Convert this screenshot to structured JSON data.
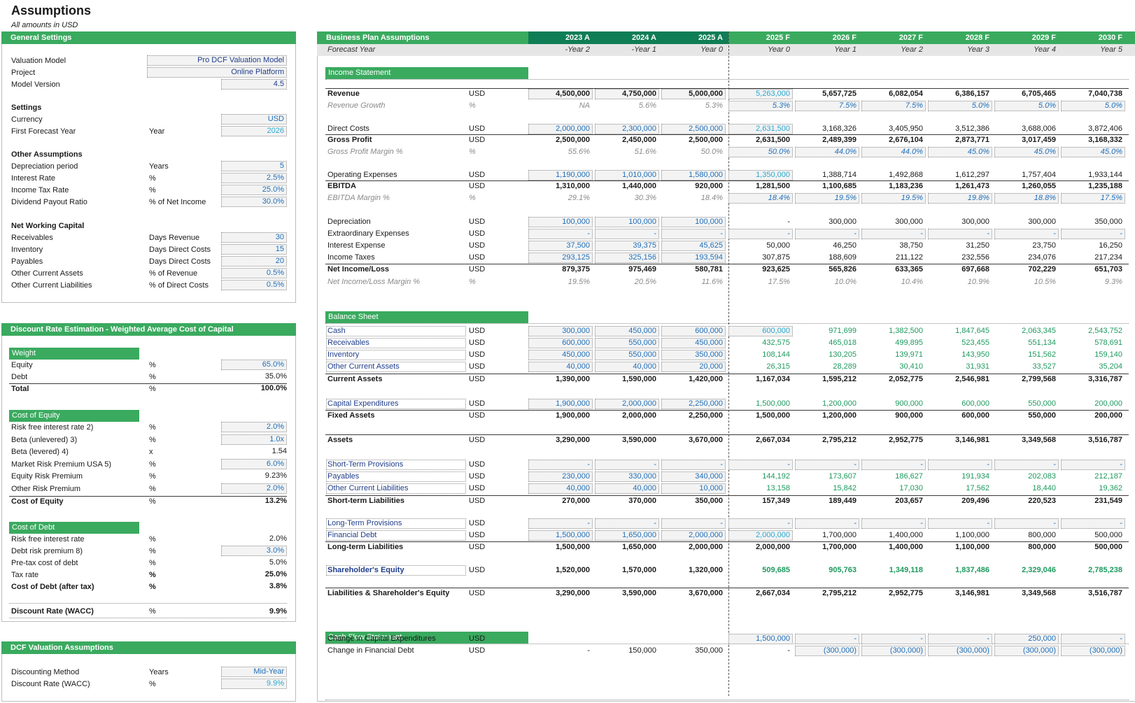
{
  "page": {
    "title": "Assumptions",
    "subtitle": "All amounts in USD"
  },
  "general": {
    "header": "General Settings",
    "valuation_model_label": "Valuation Model",
    "valuation_model": "Pro DCF Valuation Model",
    "project_label": "Project",
    "project": "Online Platform",
    "model_version_label": "Model Version",
    "model_version": "4.5",
    "settings_heading": "Settings",
    "currency_label": "Currency",
    "currency": "USD",
    "first_forecast_label": "First Forecast Year",
    "first_forecast_unit": "Year",
    "first_forecast": "2026",
    "other_heading": "Other Assumptions",
    "other": [
      {
        "label": "Depreciation period",
        "unit": "Years",
        "value": "5"
      },
      {
        "label": "Interest Rate",
        "unit": "%",
        "value": "2.5%"
      },
      {
        "label": "Income Tax Rate",
        "unit": "%",
        "value": "25.0%"
      },
      {
        "label": "Dividend Payout Ratio",
        "unit": "% of Net Income",
        "value": "30.0%"
      }
    ],
    "nwc_heading": "Net Working Capital",
    "nwc": [
      {
        "label": "Receivables",
        "unit": "Days Revenue",
        "value": "30"
      },
      {
        "label": "Inventory",
        "unit": "Days Direct Costs",
        "value": "15"
      },
      {
        "label": "Payables",
        "unit": "Days Direct Costs",
        "value": "20"
      },
      {
        "label": "Other Current Assets",
        "unit": "% of Revenue",
        "value": "0.5%"
      },
      {
        "label": "Other Current Liabilities",
        "unit": "% of Direct Costs",
        "value": "0.5%"
      }
    ]
  },
  "wacc": {
    "header": "Discount Rate Estimation - Weighted Average Cost of Capital",
    "weight_heading": "Weight",
    "weight": [
      {
        "label": "Equity",
        "unit": "%",
        "value": "65.0%"
      },
      {
        "label": "Debt",
        "unit": "%",
        "value": "35.0%"
      },
      {
        "label": "Total",
        "unit": "%",
        "value": "100.0%"
      }
    ],
    "coe_heading": "Cost of Equity",
    "coe": [
      {
        "label": "Risk free interest rate 2)",
        "unit": "%",
        "value": "2.0%"
      },
      {
        "label": "Beta (unlevered) 3)",
        "unit": "%",
        "value": "1.0x"
      },
      {
        "label": "Beta (levered) 4)",
        "unit": "x",
        "value": "1.54"
      },
      {
        "label": "Market Risk Premium USA 5)",
        "unit": "%",
        "value": "6.0%"
      },
      {
        "label": "Equity Risk Premium",
        "unit": "%",
        "value": "9.23%"
      },
      {
        "label": "Other Risk Premium",
        "unit": "%",
        "value": "2.0%"
      },
      {
        "label": "Cost of Equity",
        "unit": "%",
        "value": "13.2%"
      }
    ],
    "cod_heading": "Cost of Debt",
    "cod": [
      {
        "label": "Risk free interest rate",
        "unit": "%",
        "value": "2.0%"
      },
      {
        "label": "Debt risk premium 8)",
        "unit": "%",
        "value": "3.0%"
      },
      {
        "label": "Pre-tax cost of debt",
        "unit": "%",
        "value": "5.0%"
      },
      {
        "label": "Tax rate",
        "unit": "%",
        "value": "25.0%"
      },
      {
        "label": "Cost of Debt (after tax)",
        "unit": "%",
        "value": "3.8%"
      }
    ],
    "discount": {
      "label": "Discount Rate (WACC)",
      "unit": "%",
      "value": "9.9%"
    }
  },
  "dcf": {
    "header": "DCF Valuation Assumptions",
    "method_label": "Discounting Method",
    "method_unit": "Years",
    "method": "Mid-Year",
    "rate_label": "Discount Rate (WACC)",
    "rate_unit": "%",
    "rate": "9.9%"
  },
  "bp": {
    "header": "Business Plan Assumptions",
    "forecast_year_label": "Forecast Year",
    "years": [
      "2023 A",
      "2024 A",
      "2025 A",
      "2025 F",
      "2026 F",
      "2027 F",
      "2028 F",
      "2029 F",
      "2030 F"
    ],
    "year_offsets": [
      "-Year 2",
      "-Year 1",
      "Year 0",
      "Year 0",
      "Year 1",
      "Year 2",
      "Year 3",
      "Year 4",
      "Year 5"
    ],
    "sections": {
      "is": "Income Statement",
      "bs": "Balance Sheet",
      "cf": "Cash Flow Statement"
    },
    "rows": [
      {
        "y": 127,
        "label": "Revenue",
        "unit": "USD",
        "s": "b",
        "v": [
          "4,500,000",
          "4,750,000",
          "5,000,000",
          "5,263,000",
          "5,657,725",
          "6,082,054",
          "6,386,157",
          "6,705,465",
          "7,040,738"
        ],
        "box": "a"
      },
      {
        "y": 144,
        "label": "Revenue Growth",
        "unit": "%",
        "s": "i",
        "v": [
          "NA",
          "5.6%",
          "5.3%",
          "5.3%",
          "7.5%",
          "7.5%",
          "5.0%",
          "5.0%",
          "5.0%"
        ],
        "box": "f"
      },
      {
        "y": 177,
        "label": "Direct Costs",
        "unit": "USD",
        "s": "",
        "v": [
          "2,000,000",
          "2,300,000",
          "2,500,000",
          "2,631,500",
          "3,168,326",
          "3,405,950",
          "3,512,386",
          "3,688,006",
          "3,872,406"
        ],
        "box": "a"
      },
      {
        "y": 193,
        "label": "Gross Profit",
        "unit": "USD",
        "s": "b",
        "v": [
          "2,500,000",
          "2,450,000",
          "2,500,000",
          "2,631,500",
          "2,489,399",
          "2,676,104",
          "2,873,771",
          "3,017,459",
          "3,168,332"
        ]
      },
      {
        "y": 210,
        "label": "Gross Profit Margin %",
        "unit": "%",
        "s": "i",
        "v": [
          "55.6%",
          "51.6%",
          "50.0%",
          "50.0%",
          "44.0%",
          "44.0%",
          "45.0%",
          "45.0%",
          "45.0%"
        ],
        "box": "f"
      },
      {
        "y": 243,
        "label": "Operating Expenses",
        "unit": "USD",
        "s": "",
        "v": [
          "1,190,000",
          "1,010,000",
          "1,580,000",
          "1,350,000",
          "1,388,714",
          "1,492,868",
          "1,612,297",
          "1,757,404",
          "1,933,144"
        ],
        "box": "a"
      },
      {
        "y": 259,
        "label": "EBITDA",
        "unit": "USD",
        "s": "b",
        "v": [
          "1,310,000",
          "1,440,000",
          "920,000",
          "1,281,500",
          "1,100,685",
          "1,183,236",
          "1,261,473",
          "1,260,055",
          "1,235,188"
        ]
      },
      {
        "y": 276,
        "label": "EBITDA Margin %",
        "unit": "%",
        "s": "i",
        "v": [
          "29.1%",
          "30.3%",
          "18.4%",
          "18.4%",
          "19.5%",
          "19.5%",
          "19.8%",
          "18.8%",
          "17.5%"
        ],
        "box": "f"
      },
      {
        "y": 310,
        "label": "Depreciation",
        "unit": "USD",
        "s": "",
        "v": [
          "100,000",
          "100,000",
          "100,000",
          "-",
          "300,000",
          "300,000",
          "300,000",
          "300,000",
          "350,000"
        ],
        "box": "a3"
      },
      {
        "y": 327,
        "label": "Extraordinary Expenses",
        "unit": "USD",
        "s": "",
        "v": [
          "-",
          "-",
          "-",
          "-",
          "-",
          "-",
          "-",
          "-",
          "-"
        ],
        "box": "all"
      },
      {
        "y": 344,
        "label": "Interest Expense",
        "unit": "USD",
        "s": "",
        "v": [
          "37,500",
          "39,375",
          "45,625",
          "50,000",
          "46,250",
          "38,750",
          "31,250",
          "23,750",
          "16,250"
        ],
        "box": "a3"
      },
      {
        "y": 361,
        "label": "Income Taxes",
        "unit": "USD",
        "s": "",
        "v": [
          "293,125",
          "325,156",
          "193,594",
          "307,875",
          "188,609",
          "211,122",
          "232,556",
          "234,076",
          "217,234"
        ],
        "box": "a3"
      },
      {
        "y": 378,
        "label": "Net Income/Loss",
        "unit": "USD",
        "s": "b",
        "v": [
          "879,375",
          "975,469",
          "580,781",
          "923,625",
          "565,826",
          "633,365",
          "697,668",
          "702,229",
          "651,703"
        ]
      },
      {
        "y": 396,
        "label": "Net Income/Loss Margin %",
        "unit": "%",
        "s": "i",
        "v": [
          "19.5%",
          "20.5%",
          "11.6%",
          "17.5%",
          "10.0%",
          "10.4%",
          "10.9%",
          "10.5%",
          "9.3%"
        ]
      },
      {
        "y": 466,
        "label": "Cash",
        "unit": "USD",
        "s": "lk",
        "v": [
          "300,000",
          "450,000",
          "600,000",
          "600,000",
          "971,699",
          "1,382,500",
          "1,847,645",
          "2,063,345",
          "2,543,752"
        ],
        "box": "a",
        "fc": "green"
      },
      {
        "y": 483,
        "label": "Receivables",
        "unit": "USD",
        "s": "lk",
        "v": [
          "600,000",
          "550,000",
          "450,000",
          "432,575",
          "465,018",
          "499,895",
          "523,455",
          "551,134",
          "578,691"
        ],
        "box": "a3",
        "fc": "green"
      },
      {
        "y": 500,
        "label": "Inventory",
        "unit": "USD",
        "s": "lk",
        "v": [
          "450,000",
          "550,000",
          "350,000",
          "108,144",
          "130,205",
          "139,971",
          "143,950",
          "151,562",
          "159,140"
        ],
        "box": "a3",
        "fc": "green"
      },
      {
        "y": 517,
        "label": "Other Current Assets",
        "unit": "USD",
        "s": "lk",
        "v": [
          "40,000",
          "40,000",
          "20,000",
          "26,315",
          "28,289",
          "30,410",
          "31,931",
          "33,527",
          "35,204"
        ],
        "box": "a3",
        "fc": "green"
      },
      {
        "y": 535,
        "label": "Current Assets",
        "unit": "USD",
        "s": "b",
        "v": [
          "1,390,000",
          "1,590,000",
          "1,420,000",
          "1,167,034",
          "1,595,212",
          "2,052,775",
          "2,546,981",
          "2,799,568",
          "3,316,787"
        ]
      },
      {
        "y": 570,
        "label": "Capital Expenditures",
        "unit": "USD",
        "s": "lk",
        "v": [
          "1,900,000",
          "2,000,000",
          "2,250,000",
          "1,500,000",
          "1,200,000",
          "900,000",
          "600,000",
          "550,000",
          "200,000"
        ],
        "box": "a3",
        "fc": "green"
      },
      {
        "y": 587,
        "label": "Fixed Assets",
        "unit": "USD",
        "s": "b",
        "v": [
          "1,900,000",
          "2,000,000",
          "2,250,000",
          "1,500,000",
          "1,200,000",
          "900,000",
          "600,000",
          "550,000",
          "200,000"
        ]
      },
      {
        "y": 622,
        "label": "Assets",
        "unit": "USD",
        "s": "b",
        "v": [
          "3,290,000",
          "3,590,000",
          "3,670,000",
          "2,667,034",
          "2,795,212",
          "2,952,775",
          "3,146,981",
          "3,349,568",
          "3,516,787"
        ]
      },
      {
        "y": 657,
        "label": "Short-Term Provisions",
        "unit": "USD",
        "s": "lk",
        "v": [
          "-",
          "-",
          "-",
          "-",
          "-",
          "-",
          "-",
          "-",
          "-"
        ],
        "box": "all",
        "fc": "green"
      },
      {
        "y": 674,
        "label": "Payables",
        "unit": "USD",
        "s": "lk",
        "v": [
          "230,000",
          "330,000",
          "340,000",
          "144,192",
          "173,607",
          "186,627",
          "191,934",
          "202,083",
          "212,187"
        ],
        "box": "a3",
        "fc": "green"
      },
      {
        "y": 691,
        "label": "Other Current Liabilities",
        "unit": "USD",
        "s": "lk",
        "v": [
          "40,000",
          "40,000",
          "10,000",
          "13,158",
          "15,842",
          "17,030",
          "17,562",
          "18,440",
          "19,362"
        ],
        "box": "a3",
        "fc": "green"
      },
      {
        "y": 709,
        "label": "Short-term Liabilities",
        "unit": "USD",
        "s": "b",
        "v": [
          "270,000",
          "370,000",
          "350,000",
          "157,349",
          "189,449",
          "203,657",
          "209,496",
          "220,523",
          "231,549"
        ]
      },
      {
        "y": 741,
        "label": "Long-Term Provisions",
        "unit": "USD",
        "s": "lk",
        "v": [
          "-",
          "-",
          "-",
          "-",
          "-",
          "-",
          "-",
          "-",
          "-"
        ],
        "box": "all",
        "fc": "green"
      },
      {
        "y": 758,
        "label": "Financial Debt",
        "unit": "USD",
        "s": "lk",
        "v": [
          "1,500,000",
          "1,650,000",
          "2,000,000",
          "2,000,000",
          "1,700,000",
          "1,400,000",
          "1,100,000",
          "800,000",
          "500,000"
        ],
        "box": "a"
      },
      {
        "y": 775,
        "label": "Long-term Liabilities",
        "unit": "USD",
        "s": "b",
        "v": [
          "1,500,000",
          "1,650,000",
          "2,000,000",
          "2,000,000",
          "1,700,000",
          "1,400,000",
          "1,100,000",
          "800,000",
          "500,000"
        ]
      },
      {
        "y": 808,
        "label": "Shareholder's Equity",
        "unit": "USD",
        "s": "lkb",
        "v": [
          "1,520,000",
          "1,570,000",
          "1,320,000",
          "509,685",
          "905,763",
          "1,349,118",
          "1,837,486",
          "2,329,046",
          "2,785,238"
        ],
        "fc": "greenb"
      },
      {
        "y": 841,
        "label": "Liabilities & Shareholder's Equity",
        "unit": "USD",
        "s": "b",
        "v": [
          "3,290,000",
          "3,590,000",
          "3,670,000",
          "2,667,034",
          "2,795,212",
          "2,952,775",
          "3,146,981",
          "3,349,568",
          "3,516,787"
        ]
      },
      {
        "y": 906,
        "label": "Change in Capital Expenditures",
        "unit": "USD",
        "s": "",
        "v": [
          "",
          "",
          "",
          "1,500,000",
          "-",
          "-",
          "-",
          "250,000",
          "-"
        ],
        "box": "f"
      },
      {
        "y": 923,
        "label": "Change in Financial Debt",
        "unit": "USD",
        "s": "",
        "v": [
          "-",
          "150,000",
          "350,000",
          "-",
          "(300,000)",
          "(300,000)",
          "(300,000)",
          "(300,000)",
          "(300,000)"
        ],
        "box": "f5"
      }
    ]
  }
}
